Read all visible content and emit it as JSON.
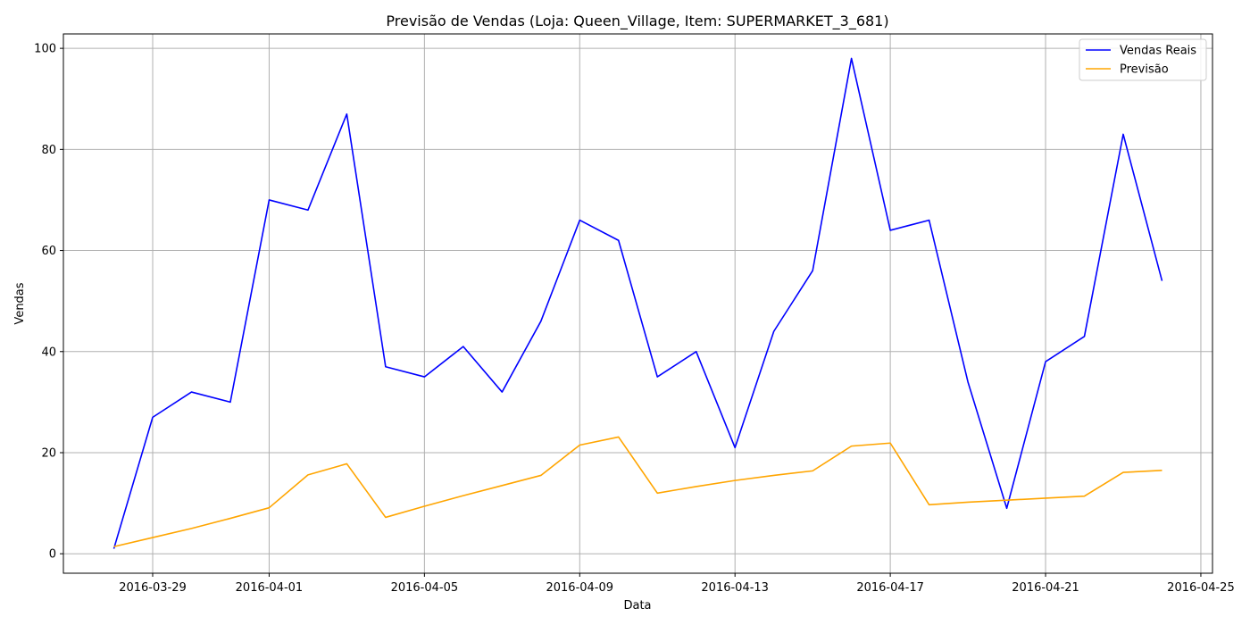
{
  "chart_data": {
    "type": "line",
    "title": "Previsão de Vendas (Loja: Queen_Village, Item: SUPERMARKET_3_681)",
    "xlabel": "Data",
    "ylabel": "Vendas",
    "x": [
      "2016-03-28",
      "2016-03-29",
      "2016-03-30",
      "2016-03-31",
      "2016-04-01",
      "2016-04-02",
      "2016-04-03",
      "2016-04-04",
      "2016-04-05",
      "2016-04-06",
      "2016-04-07",
      "2016-04-08",
      "2016-04-09",
      "2016-04-10",
      "2016-04-11",
      "2016-04-12",
      "2016-04-13",
      "2016-04-14",
      "2016-04-15",
      "2016-04-16",
      "2016-04-17",
      "2016-04-18",
      "2016-04-19",
      "2016-04-20",
      "2016-04-21",
      "2016-04-22",
      "2016-04-23",
      "2016-04-24"
    ],
    "series": [
      {
        "name": "Vendas Reais",
        "color": "#0000ff",
        "values": [
          1,
          27,
          32,
          30,
          70,
          68,
          87,
          37,
          35,
          41,
          32,
          46,
          66,
          62,
          35,
          40,
          21,
          44,
          56,
          98,
          64,
          66,
          34,
          9,
          38,
          43,
          83,
          54
        ]
      },
      {
        "name": "Previsão",
        "color": "#ffa500",
        "values": [
          1.4,
          3.2,
          5.0,
          7.0,
          9.1,
          15.6,
          17.8,
          7.2,
          9.4,
          11.5,
          13.5,
          15.5,
          21.5,
          23.1,
          12.0,
          13.3,
          14.5,
          15.5,
          16.4,
          21.3,
          21.9,
          9.7,
          10.2,
          10.6,
          11.0,
          11.4,
          16.1,
          16.5
        ]
      }
    ],
    "xticks": [
      "2016-03-29",
      "2016-04-01",
      "2016-04-05",
      "2016-04-09",
      "2016-04-13",
      "2016-04-17",
      "2016-04-21",
      "2016-04-25"
    ],
    "yticks": [
      0,
      20,
      40,
      60,
      80,
      100
    ],
    "xlim": [
      "2016-03-26 16:48",
      "2016-04-25 07:12"
    ],
    "ylim": [
      -3.85,
      102.85
    ],
    "grid": true,
    "legend_position": "top-right"
  }
}
